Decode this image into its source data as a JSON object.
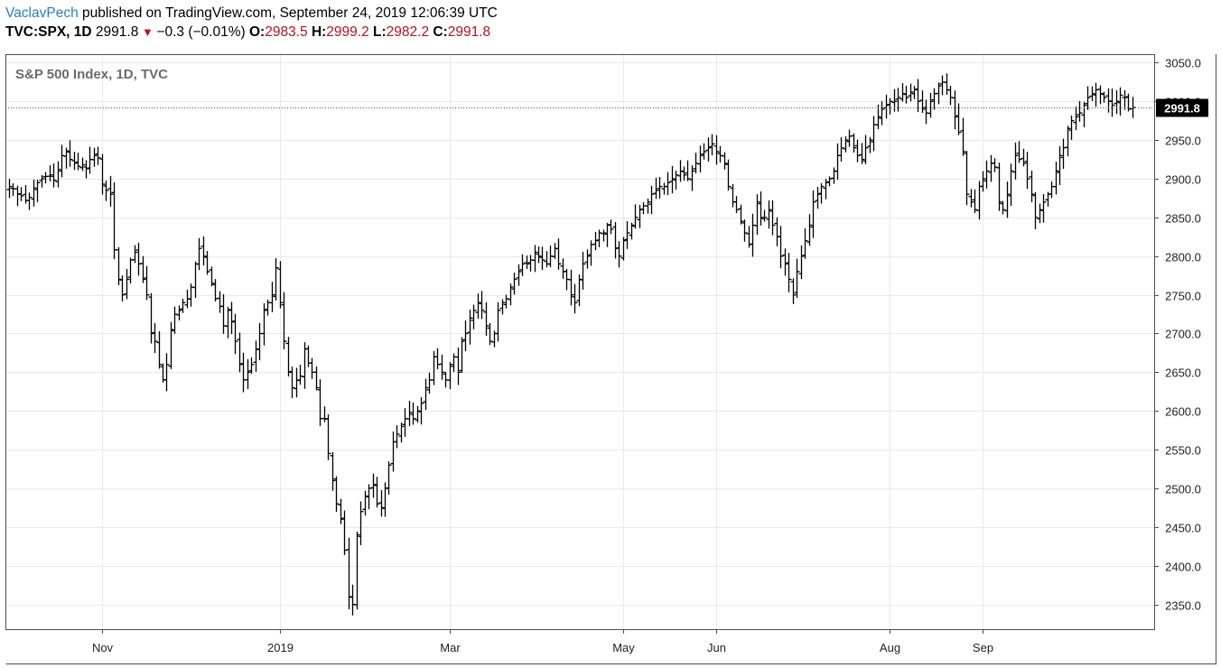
{
  "header": {
    "publisher": "VaclavPech",
    "published_text": "published on TradingView.com, September 24, 2019 12:06:39 UTC",
    "symbol": "TVC:SPX, 1D",
    "last": "2991.8",
    "change": "−0.3 (−0.01%)",
    "o_label": "O:",
    "o_value": "2983.5",
    "h_label": "H:",
    "h_value": "2999.2",
    "l_label": "L:",
    "l_value": "2982.2",
    "c_label": "C:",
    "c_value": "2991.8"
  },
  "colors": {
    "publisher": "#2a7fbd",
    "ohlc_values": "#b3161d",
    "bars": "#000000",
    "price_tag": "#000000"
  },
  "chart_data": {
    "type": "ohlc",
    "title": "S&P 500 Index, 1D, TVC",
    "y_ticks": [
      2350,
      2400,
      2450,
      2500,
      2550,
      2600,
      2650,
      2700,
      2750,
      2800,
      2850,
      2900,
      2950,
      3000,
      3050
    ],
    "y_tick_labels": [
      "2350.0",
      "2400.0",
      "2450.0",
      "2500.0",
      "2550.0",
      "2600.0",
      "2650.0",
      "2700.0",
      "2750.0",
      "2800.0",
      "2850.0",
      "2900.0",
      "2950.0",
      "3000.0",
      "3050.0"
    ],
    "ylim": [
      2318,
      3061
    ],
    "x_ticks": [
      {
        "label": "Nov",
        "date": "2018-11-01"
      },
      {
        "label": "2019",
        "date": "2019-01-02"
      },
      {
        "label": "Mar",
        "date": "2019-03-01"
      },
      {
        "label": "May",
        "date": "2019-05-01"
      },
      {
        "label": "Jun",
        "date": "2019-06-03"
      },
      {
        "label": "Aug",
        "date": "2019-08-01"
      },
      {
        "label": "Sep",
        "date": "2019-09-03"
      }
    ],
    "last_price": 2991.8,
    "last_price_label": "2991.8",
    "grid": true,
    "closes": [
      2890,
      2887,
      2880,
      2878,
      2872,
      2876,
      2888,
      2895,
      2900,
      2903,
      2905,
      2898,
      2912,
      2930,
      2936,
      2925,
      2920,
      2916,
      2918,
      2913,
      2925,
      2930,
      2927,
      2893,
      2885,
      2880,
      2808,
      2770,
      2750,
      2770,
      2795,
      2805,
      2790,
      2770,
      2750,
      2700,
      2690,
      2660,
      2640,
      2660,
      2705,
      2725,
      2730,
      2740,
      2745,
      2760,
      2790,
      2810,
      2800,
      2780,
      2765,
      2745,
      2735,
      2710,
      2730,
      2715,
      2690,
      2660,
      2640,
      2650,
      2660,
      2680,
      2700,
      2730,
      2740,
      2750,
      2785,
      2740,
      2690,
      2650,
      2630,
      2640,
      2645,
      2680,
      2662,
      2650,
      2630,
      2590,
      2590,
      2545,
      2510,
      2480,
      2460,
      2420,
      2360,
      2350,
      2440,
      2470,
      2490,
      2500,
      2505,
      2480,
      2475,
      2500,
      2530,
      2560,
      2570,
      2580,
      2590,
      2598,
      2590,
      2600,
      2610,
      2630,
      2640,
      2670,
      2660,
      2650,
      2640,
      2660,
      2670,
      2650,
      2690,
      2700,
      2720,
      2730,
      2740,
      2730,
      2710,
      2690,
      2700,
      2730,
      2740,
      2745,
      2760,
      2770,
      2780,
      2790,
      2790,
      2795,
      2805,
      2800,
      2795,
      2790,
      2800,
      2810,
      2790,
      2780,
      2770,
      2750,
      2740,
      2770,
      2790,
      2800,
      2815,
      2820,
      2830,
      2830,
      2840,
      2835,
      2810,
      2800,
      2820,
      2830,
      2840,
      2850,
      2860,
      2865,
      2870,
      2880,
      2885,
      2890,
      2890,
      2895,
      2900,
      2905,
      2910,
      2905,
      2900,
      2910,
      2920,
      2930,
      2935,
      2940,
      2945,
      2935,
      2930,
      2920,
      2890,
      2870,
      2860,
      2845,
      2830,
      2815,
      2840,
      2870,
      2850,
      2850,
      2860,
      2840,
      2825,
      2800,
      2790,
      2770,
      2750,
      2780,
      2800,
      2820,
      2840,
      2870,
      2880,
      2890,
      2895,
      2900,
      2910,
      2930,
      2940,
      2950,
      2955,
      2940,
      2930,
      2925,
      2940,
      2950,
      2970,
      2980,
      2990,
      2995,
      3000,
      3000,
      3005,
      3010,
      3005,
      3012,
      3015,
      3000,
      2990,
      2985,
      3000,
      3010,
      3020,
      3025,
      3015,
      3005,
      2980,
      2960,
      2935,
      2880,
      2870,
      2860,
      2890,
      2900,
      2910,
      2920,
      2915,
      2870,
      2860,
      2880,
      2910,
      2930,
      2925,
      2920,
      2900,
      2880,
      2850,
      2860,
      2870,
      2880,
      2890,
      2910,
      2930,
      2940,
      2965,
      2975,
      2980,
      2985,
      2995,
      3005,
      3010,
      3015,
      3010,
      3005,
      3000,
      2995,
      3000,
      3008,
      3005,
      2990,
      2992
    ]
  }
}
